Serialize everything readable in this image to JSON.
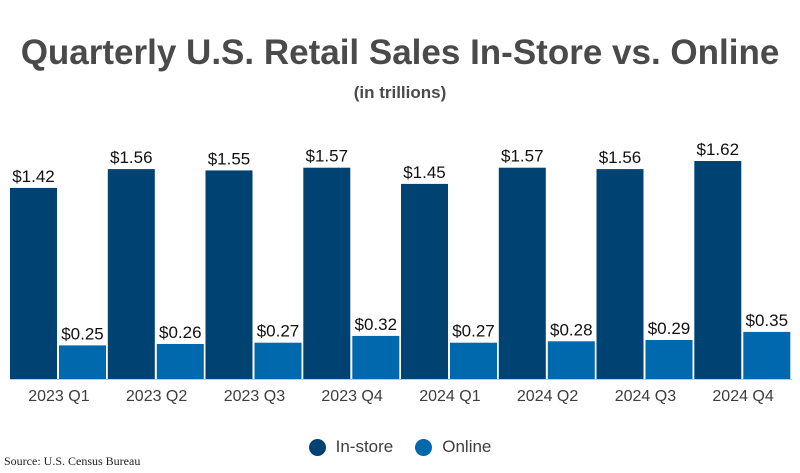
{
  "colors": {
    "in_store": "#004373",
    "online": "#0068ad",
    "title": "#4a4a4a",
    "label": "#111111",
    "tick": "#3d3d3d",
    "axis": "#c8c8c8"
  },
  "legend": {
    "in_store_label": "In-store",
    "online_label": "Online",
    "placement": "bottom-center"
  },
  "source": "Source: U.S. Census Bureau",
  "chart_data": {
    "type": "bar",
    "title": "Quarterly U.S. Retail Sales In-Store vs. Online",
    "subtitle": "(in trillions)",
    "xlabel": "",
    "ylabel": "",
    "ylim": [
      0,
      1.62
    ],
    "grid": false,
    "categories": [
      "2023 Q1",
      "2023 Q2",
      "2023 Q3",
      "2023 Q4",
      "2024 Q1",
      "2024 Q2",
      "2024 Q3",
      "2024 Q4"
    ],
    "series": [
      {
        "name": "In-store",
        "values": [
          1.42,
          1.56,
          1.55,
          1.57,
          1.45,
          1.57,
          1.56,
          1.62
        ],
        "labels": [
          "$1.42",
          "$1.56",
          "$1.55",
          "$1.57",
          "$1.45",
          "$1.57",
          "$1.56",
          "$1.62"
        ]
      },
      {
        "name": "Online",
        "values": [
          0.25,
          0.26,
          0.27,
          0.32,
          0.27,
          0.28,
          0.29,
          0.35
        ],
        "labels": [
          "$0.25",
          "$0.26",
          "$0.27",
          "$0.32",
          "$0.27",
          "$0.28",
          "$0.29",
          "$0.35"
        ]
      }
    ]
  }
}
